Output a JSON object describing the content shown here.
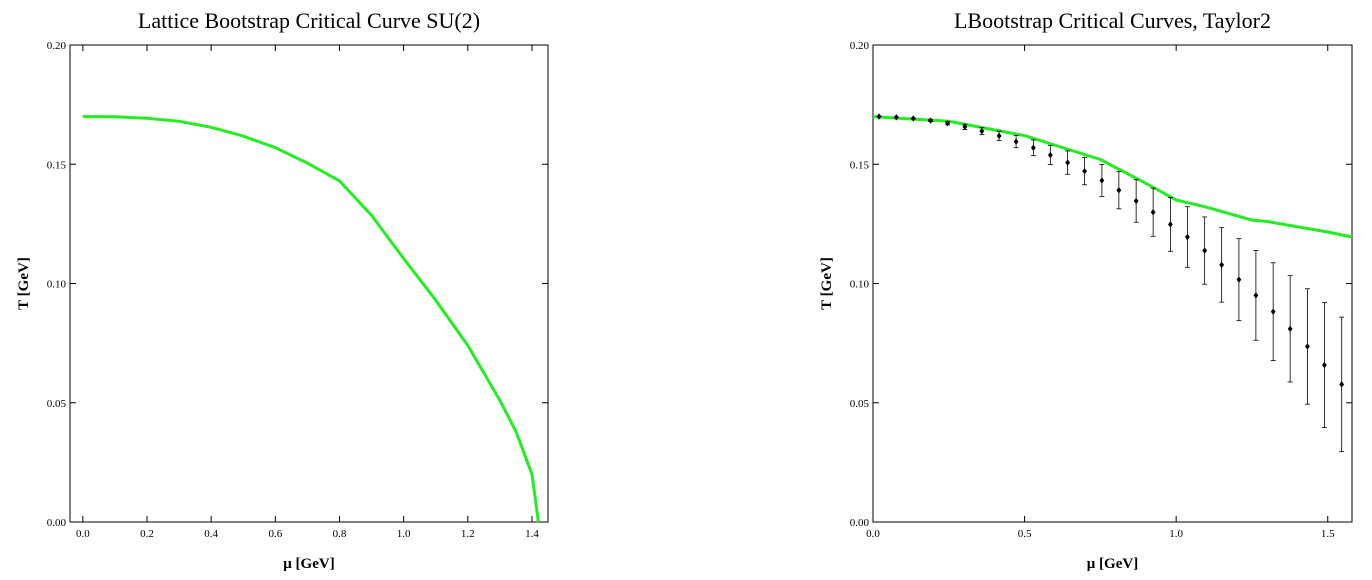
{
  "chart_data": [
    {
      "type": "line",
      "title": "Lattice Bootstrap Critical Curve SU(2)",
      "x_label": "μ [GeV]",
      "y_label": "T [GeV]",
      "xlim": [
        -0.04,
        1.45
      ],
      "ylim": [
        0,
        0.2
      ],
      "xticks": [
        {
          "value": 0,
          "label": "0.0"
        },
        0.2,
        0.4,
        0.6,
        0.8,
        {
          "value": 1,
          "label": "1.0"
        },
        1.2,
        1.4
      ],
      "yticks": [
        {
          "value": 0,
          "label": "0.00"
        },
        0.05,
        {
          "value": 0.1,
          "label": "0.10"
        },
        0.15,
        {
          "value": 0.2,
          "label": "0.20"
        }
      ],
      "series": [
        {
          "color": "#22ee22",
          "x": [
            0,
            0.1,
            0.2,
            0.3,
            0.4,
            0.5,
            0.6,
            0.7,
            0.8,
            0.9,
            1.0,
            1.1,
            1.2,
            1.3,
            1.35,
            1.4,
            1.42
          ],
          "values": [
            0.17,
            0.1699,
            0.1693,
            0.168,
            0.1655,
            0.1618,
            0.157,
            0.1505,
            0.143,
            0.1285,
            0.1105,
            0.093,
            0.074,
            0.051,
            0.038,
            0.02,
            0
          ]
        }
      ]
    },
    {
      "type": "line",
      "title": "LBootstrap Critical Curves, Taylor2",
      "x_label": "μ [GeV]",
      "y_label": "T [GeV]",
      "xlim": [
        0,
        1.58
      ],
      "ylim": [
        0,
        0.2
      ],
      "xticks": [
        {
          "value": 0,
          "label": "0.0"
        },
        0.5,
        {
          "value": 1,
          "label": "1.0"
        },
        1.5
      ],
      "yticks": [
        {
          "value": 0,
          "label": "0.00"
        },
        0.05,
        {
          "value": 0.1,
          "label": "0.10"
        },
        0.15,
        {
          "value": 0.2,
          "label": "0.20"
        }
      ],
      "series": [
        {
          "color": "#22ee22",
          "x": [
            0,
            0.25,
            0.5,
            0.6,
            0.75,
            0.9,
            1.0,
            1.1,
            1.25,
            1.3,
            1.5,
            1.58
          ],
          "values": [
            0.17,
            0.168,
            0.162,
            0.158,
            0.152,
            0.142,
            0.135,
            0.132,
            0.1266,
            0.126,
            0.1216,
            0.1195
          ]
        },
        {
          "type": "errorbar",
          "color": "#000000",
          "x": [
            0.02,
            0.077,
            0.133,
            0.19,
            0.246,
            0.303,
            0.359,
            0.416,
            0.472,
            0.529,
            0.585,
            0.642,
            0.698,
            0.755,
            0.811,
            0.868,
            0.924,
            0.981,
            1.037,
            1.094,
            1.15,
            1.207,
            1.263,
            1.32,
            1.376,
            1.433,
            1.489,
            1.546
          ],
          "values": [
            0.17,
            0.1697,
            0.1692,
            0.1683,
            0.1672,
            0.1657,
            0.1639,
            0.1619,
            0.1595,
            0.1569,
            0.1539,
            0.1507,
            0.1471,
            0.1432,
            0.1391,
            0.1346,
            0.1299,
            0.1248,
            0.1195,
            0.1138,
            0.1078,
            0.1016,
            0.095,
            0.0882,
            0.081,
            0.0736,
            0.0658,
            0.0577
          ],
          "errors": [
            0,
            0.0001,
            0.0002,
            0.0004,
            0.0007,
            0.0011,
            0.0015,
            0.002,
            0.0026,
            0.0033,
            0.004,
            0.0049,
            0.0057,
            0.0067,
            0.0078,
            0.0089,
            0.0101,
            0.0113,
            0.0127,
            0.0141,
            0.0156,
            0.0172,
            0.0188,
            0.0205,
            0.0223,
            0.0242,
            0.0262,
            0.0282
          ]
        }
      ]
    }
  ]
}
